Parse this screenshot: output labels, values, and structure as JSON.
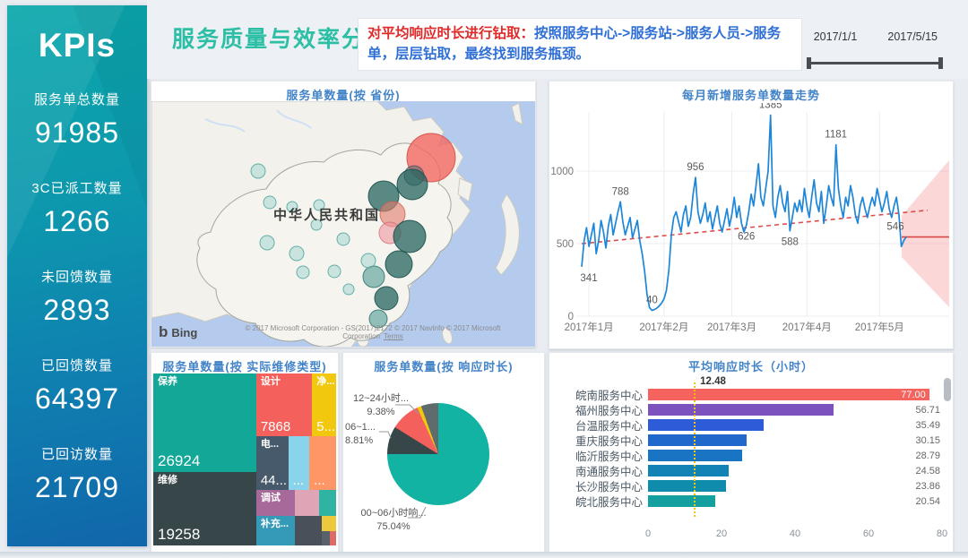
{
  "sidebar": {
    "title": "KPIs",
    "kpis": [
      {
        "label": "服务单总数量",
        "value": "91985"
      },
      {
        "label": "3C已派工数量",
        "value": "1266"
      },
      {
        "label": "未回馈数量",
        "value": "2893"
      },
      {
        "label": "已回馈数量",
        "value": "64397"
      },
      {
        "label": "已回访数量",
        "value": "21709"
      }
    ]
  },
  "header": {
    "title": "服务质量与效率分析",
    "note_red": "对平均响应时长进行钻取：",
    "note_blue": "按照服务中心->服务站->服务人员->服务单，层层钻取，最终找到服务瓶颈。",
    "date_start": "2017/1/1",
    "date_end": "2017/5/15"
  },
  "map": {
    "title": "服务单数量(按 省份)",
    "country_label": "中华人民共和国",
    "logo_mark": "b",
    "logo_word": "Bing",
    "attribution": "© 2017 Microsoft Corporation - GS(2017)2172 © 2017 NavInfo © 2017 Microsoft Corporation",
    "terms_label": "Terms",
    "tones": {
      "red": {
        "fill": "rgba(242,105,97,0.8)",
        "stroke": "rgba(214,78,72,0.9)"
      },
      "salmon": {
        "fill": "rgba(226,124,112,0.62)",
        "stroke": "rgba(205,95,85,0.8)"
      },
      "pink": {
        "fill": "rgba(236,150,158,0.6)",
        "stroke": "rgba(214,110,120,0.8)"
      },
      "darkteal": {
        "fill": "rgba(38,102,95,0.75)",
        "stroke": "rgba(25,80,74,0.9)"
      },
      "teal": {
        "fill": "rgba(64,145,138,0.55)",
        "stroke": "rgba(40,115,108,0.85)"
      },
      "lightteal": {
        "fill": "rgba(148,208,202,0.45)",
        "stroke": "rgba(88,168,160,0.9)"
      },
      "gray": {
        "fill": "rgba(96,106,116,0.6)",
        "stroke": "rgba(70,80,90,0.8)"
      }
    },
    "bubbles": [
      {
        "x": 312,
        "y": 63,
        "r": 27,
        "tone": "red"
      },
      {
        "x": 293,
        "y": 83,
        "r": 11,
        "tone": "gray"
      },
      {
        "x": 291,
        "y": 93,
        "r": 17,
        "tone": "darkteal"
      },
      {
        "x": 259,
        "y": 106,
        "r": 17,
        "tone": "darkteal"
      },
      {
        "x": 269,
        "y": 126,
        "r": 14,
        "tone": "salmon"
      },
      {
        "x": 266,
        "y": 147,
        "r": 12,
        "tone": "pink"
      },
      {
        "x": 288,
        "y": 151,
        "r": 18,
        "tone": "darkteal"
      },
      {
        "x": 276,
        "y": 182,
        "r": 15,
        "tone": "darkteal"
      },
      {
        "x": 248,
        "y": 196,
        "r": 12,
        "tone": "teal"
      },
      {
        "x": 262,
        "y": 220,
        "r": 13,
        "tone": "darkteal"
      },
      {
        "x": 253,
        "y": 243,
        "r": 10,
        "tone": "teal"
      },
      {
        "x": 119,
        "y": 78,
        "r": 8,
        "tone": "lightteal"
      },
      {
        "x": 132,
        "y": 113,
        "r": 7,
        "tone": "lightteal"
      },
      {
        "x": 157,
        "y": 118,
        "r": 6,
        "tone": "lightteal"
      },
      {
        "x": 187,
        "y": 116,
        "r": 6,
        "tone": "lightteal"
      },
      {
        "x": 129,
        "y": 158,
        "r": 8,
        "tone": "lightteal"
      },
      {
        "x": 162,
        "y": 170,
        "r": 8,
        "tone": "lightteal"
      },
      {
        "x": 169,
        "y": 191,
        "r": 7,
        "tone": "lightteal"
      },
      {
        "x": 204,
        "y": 190,
        "r": 7,
        "tone": "lightteal"
      },
      {
        "x": 220,
        "y": 210,
        "r": 6,
        "tone": "lightteal"
      },
      {
        "x": 242,
        "y": 178,
        "r": 8,
        "tone": "lightteal"
      },
      {
        "x": 184,
        "y": 138,
        "r": 6,
        "tone": "lightteal"
      },
      {
        "x": 214,
        "y": 154,
        "r": 7,
        "tone": "lightteal"
      }
    ]
  },
  "chart_data": [
    {
      "id": "monthly-new-orders",
      "type": "line",
      "title": "每月新增服务单数量走势",
      "ylim": [
        0,
        1500
      ],
      "yticks": [
        "0",
        "500",
        "1000"
      ],
      "ytick_values": [
        0,
        500,
        1000
      ],
      "xticks": [
        "2017年1月",
        "2017年2月",
        "2017年3月",
        "2017年4月",
        "2017年5月"
      ],
      "xtick_days": [
        3,
        34,
        62,
        93,
        123
      ],
      "line_color": "#1E86D8",
      "trend_color": "#E04C4C",
      "trend": {
        "start": 500,
        "end": 730
      },
      "forecast_level": 546,
      "values": [
        341,
        520,
        610,
        480,
        560,
        640,
        430,
        520,
        660,
        580,
        470,
        620,
        700,
        560,
        640,
        720,
        788,
        650,
        560,
        620,
        680,
        540,
        600,
        660,
        520,
        430,
        310,
        150,
        60,
        40,
        45,
        55,
        70,
        90,
        120,
        180,
        320,
        560,
        680,
        720,
        650,
        580,
        700,
        760,
        620,
        680,
        840,
        956,
        720,
        640,
        700,
        780,
        650,
        720,
        600,
        680,
        760,
        640,
        580,
        660,
        740,
        620,
        700,
        820,
        680,
        760,
        640,
        580,
        626,
        720,
        840,
        760,
        900,
        1050,
        820,
        760,
        880,
        1000,
        1385,
        760,
        680,
        820,
        900,
        780,
        720,
        860,
        588,
        680,
        780,
        720,
        800,
        720,
        880,
        760,
        680,
        820,
        940,
        780,
        720,
        860,
        640,
        760,
        900,
        820,
        760,
        1181,
        880,
        760,
        680,
        820,
        760,
        900,
        820,
        700,
        640,
        760,
        820,
        740,
        680,
        760,
        820,
        760,
        880,
        800,
        720,
        780,
        860,
        740,
        680,
        760,
        820,
        700,
        480,
        520,
        546
      ],
      "labeled_points": [
        {
          "i": 0,
          "v": "341",
          "pos": "below",
          "dx": 8
        },
        {
          "i": 16,
          "v": "788",
          "pos": "above",
          "dx": 0
        },
        {
          "i": 29,
          "v": "40",
          "pos": "above",
          "dx": 0
        },
        {
          "i": 47,
          "v": "956",
          "pos": "above",
          "dx": 0
        },
        {
          "i": 68,
          "v": "626",
          "pos": "below",
          "dx": 0
        },
        {
          "i": 78,
          "v": "1385",
          "pos": "above",
          "dx": 0
        },
        {
          "i": 86,
          "v": "588",
          "pos": "below",
          "dx": 0
        },
        {
          "i": 105,
          "v": "1181",
          "pos": "above",
          "dx": 0
        },
        {
          "i": 134,
          "v": "546",
          "pos": "above",
          "dx": -12
        }
      ]
    },
    {
      "id": "orders-by-repair-type",
      "type": "treemap",
      "title": "服务单数量(按 实际维修类型)",
      "cells": [
        {
          "label": "保养",
          "value": "26924",
          "color": "#12A797",
          "x": 0,
          "y": 0,
          "w": 56.3,
          "h": 57.2,
          "big": true
        },
        {
          "label": "维修",
          "value": "19258",
          "color": "#374649",
          "x": 0,
          "y": 57.2,
          "w": 56.3,
          "h": 42.8,
          "big": true
        },
        {
          "label": "设计",
          "value": "7868",
          "color": "#F4615C",
          "x": 56.3,
          "y": 0,
          "w": 30.6,
          "h": 36.6
        },
        {
          "label": "净...",
          "value": "5...",
          "color": "#F2C80F",
          "x": 86.9,
          "y": 0,
          "w": 13.1,
          "h": 36.6
        },
        {
          "label": "电...",
          "value": "44...",
          "color": "#475A6B",
          "x": 56.3,
          "y": 36.6,
          "w": 17.5,
          "h": 30.9
        },
        {
          "label": "",
          "value": "...",
          "color": "#8AD4EB",
          "x": 73.8,
          "y": 36.6,
          "w": 11.6,
          "h": 30.9
        },
        {
          "label": "",
          "value": "...",
          "color": "#FE9666",
          "x": 85.4,
          "y": 36.6,
          "w": 14.6,
          "h": 30.9
        },
        {
          "label": "调试",
          "value": "",
          "color": "#A66999",
          "x": 56.3,
          "y": 67.5,
          "w": 21.3,
          "h": 15.5
        },
        {
          "label": "",
          "value": "",
          "color": "#DFA5B6",
          "x": 77.6,
          "y": 67.5,
          "w": 13.1,
          "h": 15.5
        },
        {
          "label": "",
          "value": "",
          "color": "#2FB3A3",
          "x": 90.7,
          "y": 67.5,
          "w": 9.3,
          "h": 15.5
        },
        {
          "label": "补充...",
          "value": "",
          "color": "#3599B8",
          "x": 56.3,
          "y": 83,
          "w": 21.3,
          "h": 17
        },
        {
          "label": "",
          "value": "",
          "color": "#4A5059",
          "x": 77.6,
          "y": 83,
          "w": 14.6,
          "h": 17
        },
        {
          "label": "",
          "value": "",
          "color": "#EFC93D",
          "x": 92.2,
          "y": 83,
          "w": 7.8,
          "h": 8.5
        },
        {
          "label": "",
          "value": "",
          "color": "#59616B",
          "x": 92.2,
          "y": 91.5,
          "w": 4.5,
          "h": 8.5
        },
        {
          "label": "",
          "value": "",
          "color": "#DE6A66",
          "x": 96.7,
          "y": 91.5,
          "w": 3.3,
          "h": 8.5
        }
      ]
    },
    {
      "id": "orders-by-response-time",
      "type": "pie",
      "title": "服务单数量(按 响应时长)",
      "slices": [
        {
          "label": "00~06小时响...",
          "pct": 75.04,
          "pct_display": "75.04%",
          "color": "#12B3A2"
        },
        {
          "label": "06~1...",
          "pct": 8.81,
          "pct_display": "8.81%",
          "color": "#374649"
        },
        {
          "label": "12~24小时...",
          "pct": 9.38,
          "pct_display": "9.38%",
          "color": "#F4615C"
        },
        {
          "label": "",
          "pct": 1.3,
          "pct_display": "",
          "color": "#F2C80F"
        },
        {
          "label": "",
          "pct": 5.47,
          "pct_display": "",
          "color": "#5F6B6D"
        }
      ]
    },
    {
      "id": "avg-response-hours",
      "type": "bar",
      "title": "平均响应时长（小时）",
      "xticks": [
        "0",
        "20",
        "40",
        "60",
        "80"
      ],
      "xtick_values": [
        0,
        20,
        40,
        60,
        80
      ],
      "xmax": 80,
      "avg_line": {
        "value": 12.48,
        "label": "12.48",
        "color": "#F2C80F"
      },
      "categories": [
        "皖南服务中心",
        "福州服务中心",
        "台温服务中心",
        "重庆服务中心",
        "临沂服务中心",
        "南通服务中心",
        "长沙服务中心",
        "皖北服务中心"
      ],
      "values": [
        77.0,
        56.71,
        35.49,
        30.15,
        28.79,
        24.58,
        23.86,
        20.54
      ],
      "value_labels": [
        "77.00",
        "56.71",
        "35.49",
        "30.15",
        "28.79",
        "24.58",
        "23.86",
        "20.54"
      ],
      "bar_colors": [
        "#F4635E",
        "#7B52BE",
        "#2E5BD8",
        "#2168CC",
        "#1A74C4",
        "#1283B4",
        "#0F8BAC",
        "#14A09E"
      ]
    }
  ]
}
